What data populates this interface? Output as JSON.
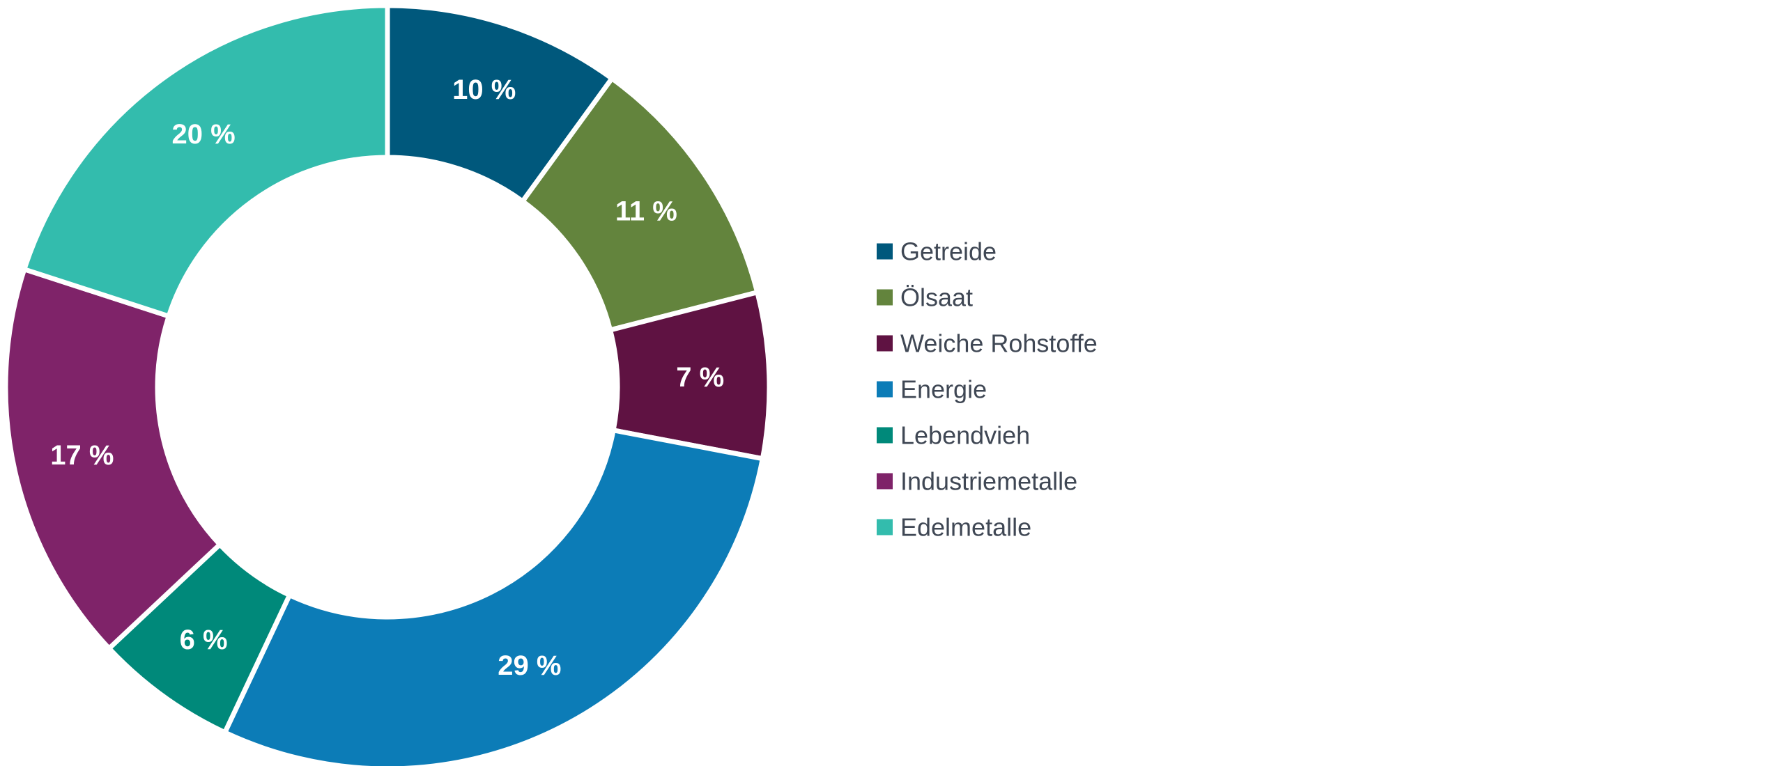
{
  "chart_data": {
    "type": "pie",
    "title": "",
    "categories": [
      "Getreide",
      "Ölsaat",
      "Weiche Rohstoffe",
      "Energie",
      "Lebendvieh",
      "Industriemetalle",
      "Edelmetalle"
    ],
    "values": [
      10,
      11,
      7,
      29,
      6,
      17,
      20
    ],
    "labels": [
      "10 %",
      "11 %",
      "7 %",
      "29 %",
      "6 %",
      "17 %",
      "20 %"
    ],
    "colors": [
      "#00587c",
      "#63843d",
      "#5f1242",
      "#0c7cb7",
      "#00897a",
      "#7f2369",
      "#33bcad"
    ],
    "donut": true,
    "start_angle_deg": 0,
    "direction": "clockwise",
    "legend_position": "right",
    "grid": false
  }
}
